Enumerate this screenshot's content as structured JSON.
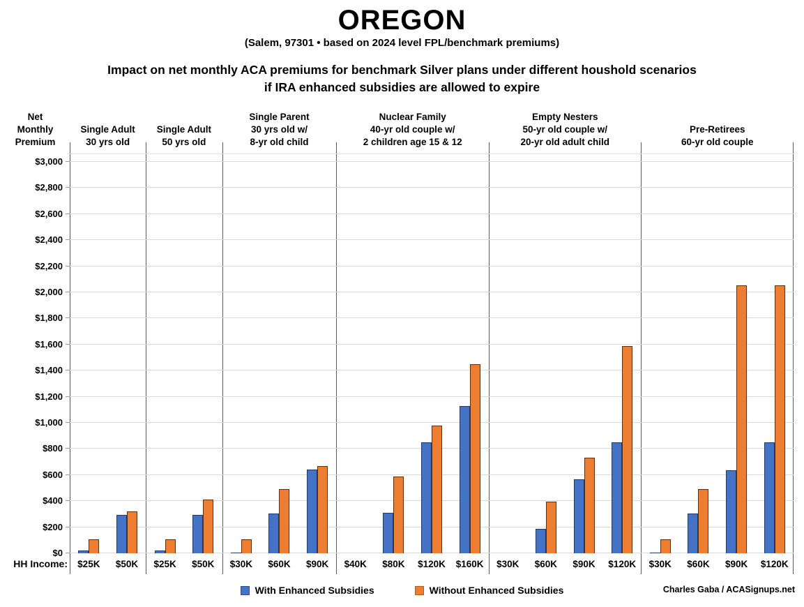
{
  "title": "OREGON",
  "subtitle": "(Salem, 97301 • based on 2024 level FPL/benchmark premiums)",
  "heading_line1": "Impact on net monthly ACA premiums for benchmark Silver plans under different houshold scenarios",
  "heading_line2": "if IRA enhanced subsidies are allowed to expire",
  "y_axis_title_lines": [
    "Net",
    "Monthly",
    "Premium"
  ],
  "hh_income_label": "HH Income:",
  "legend": {
    "with": {
      "label": "With Enhanced Subsidies",
      "color": "#4472C4"
    },
    "without": {
      "label": "Without Enhanced Subsidies",
      "color": "#ED7D31"
    }
  },
  "credit": "Charles Gaba / ACASignups.net",
  "chart_data": {
    "type": "bar",
    "title": "OREGON (Salem, 97301)",
    "ylabel": "Net Monthly Premium",
    "ylim": [
      0,
      3000
    ],
    "ytick_step": 200,
    "grid": true,
    "legend_position": "bottom",
    "series_names": [
      "With Enhanced Subsidies",
      "Without Enhanced Subsidies"
    ],
    "colors": {
      "with": "#4472C4",
      "without": "#ED7D31"
    },
    "panels": [
      {
        "header": [
          "Single Adult",
          "30 yrs old"
        ],
        "groups": [
          {
            "income": "$25K",
            "with": 20,
            "without": 105
          },
          {
            "income": "$50K",
            "with": 295,
            "without": 320
          }
        ]
      },
      {
        "header": [
          "Single Adult",
          "50 yrs old"
        ],
        "groups": [
          {
            "income": "$25K",
            "with": 20,
            "without": 105
          },
          {
            "income": "$50K",
            "with": 295,
            "without": 410
          }
        ]
      },
      {
        "header": [
          "Single Parent",
          "30 yrs old w/",
          "8-yr old child"
        ],
        "groups": [
          {
            "income": "$30K",
            "with": 5,
            "without": 105
          },
          {
            "income": "$60K",
            "with": 305,
            "without": 490
          },
          {
            "income": "$90K",
            "with": 640,
            "without": 670
          }
        ]
      },
      {
        "header": [
          "Nuclear Family",
          "40-yr old couple w/",
          "2 children age 15 & 12"
        ],
        "groups": [
          {
            "income": "$40K",
            "with": 0,
            "without": 0
          },
          {
            "income": "$80K",
            "with": 310,
            "without": 590
          },
          {
            "income": "$120K",
            "with": 850,
            "without": 980
          },
          {
            "income": "$160K",
            "with": 1130,
            "without": 1450
          }
        ]
      },
      {
        "header": [
          "Empty Nesters",
          "50-yr old couple w/",
          "20-yr old adult child"
        ],
        "groups": [
          {
            "income": "$30K",
            "with": 0,
            "without": 0
          },
          {
            "income": "$60K",
            "with": 185,
            "without": 395
          },
          {
            "income": "$90K",
            "with": 565,
            "without": 730
          },
          {
            "income": "$120K",
            "with": 850,
            "without": 1590
          }
        ]
      },
      {
        "header": [
          "Pre-Retirees",
          "60-yr old couple"
        ],
        "groups": [
          {
            "income": "$30K",
            "with": 5,
            "without": 105
          },
          {
            "income": "$60K",
            "with": 305,
            "without": 490
          },
          {
            "income": "$90K",
            "with": 635,
            "without": 2055
          },
          {
            "income": "$120K",
            "with": 850,
            "without": 2055
          }
        ]
      }
    ]
  }
}
